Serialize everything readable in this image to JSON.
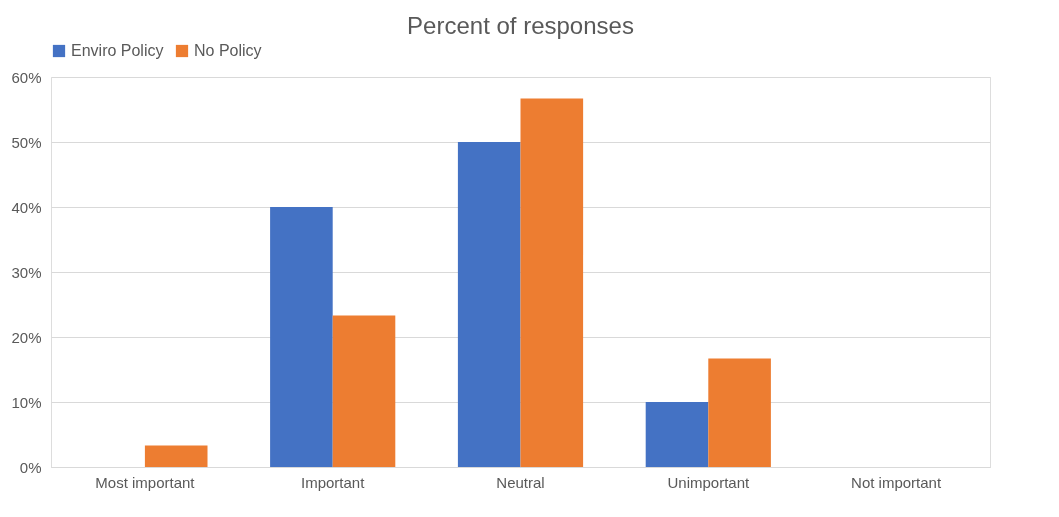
{
  "chart_data": {
    "type": "bar",
    "title": "Percent of responses",
    "categories": [
      "Most important",
      "Important",
      "Neutral",
      "Unimportant",
      "Not important"
    ],
    "series": [
      {
        "name": "Enviro Policy",
        "color": "#4472c4",
        "values": [
          0,
          40,
          50,
          10,
          0
        ]
      },
      {
        "name": "No Policy",
        "color": "#ed7d31",
        "values": [
          3.3,
          23.3,
          56.7,
          16.7,
          0
        ]
      }
    ],
    "ylim": [
      0,
      60
    ],
    "yticks": [
      {
        "value": 0,
        "label": "0%"
      },
      {
        "value": 10,
        "label": "10%"
      },
      {
        "value": 20,
        "label": "20%"
      },
      {
        "value": 30,
        "label": "30%"
      },
      {
        "value": 40,
        "label": "40%"
      },
      {
        "value": 50,
        "label": "50%"
      },
      {
        "value": 60,
        "label": "60%"
      }
    ],
    "grid": "y",
    "legend": "top"
  }
}
